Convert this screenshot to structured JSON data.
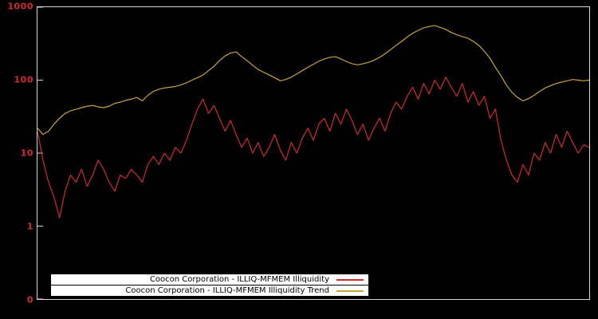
{
  "page": {
    "background_color": "#000000",
    "axis_label_color": "#d22b2b",
    "border_color": "#d8d8d8"
  },
  "legend": {
    "series": [
      {
        "label": "Coocon Corporation - ILLIQ-MFMEM Illiquidity",
        "color": "#d22b2b"
      },
      {
        "label": "Coocon Corporation - ILLIQ-MFMEM Illiquidity Trend",
        "color": "#c9a43a"
      }
    ]
  },
  "chart_data": {
    "type": "line",
    "title": "",
    "xlabel": "",
    "ylabel": "",
    "y_scale": "log",
    "y_domain_log": [
      -1,
      3
    ],
    "y_ticks": [
      "1000",
      "100",
      "10",
      "1",
      "0"
    ],
    "grid": false,
    "legend_position": "bottom-center",
    "x_range": [
      0,
      100
    ],
    "series": [
      {
        "name": "Coocon Corporation - ILLIQ-MFMEM Illiquidity",
        "color": "#d22b2b",
        "values": [
          20,
          8,
          4,
          2.5,
          1.3,
          3,
          5,
          4,
          6,
          3.5,
          5,
          8,
          6,
          4,
          3,
          5,
          4.5,
          6,
          5,
          4,
          7,
          9,
          7,
          10,
          8,
          12,
          10,
          15,
          25,
          40,
          55,
          35,
          45,
          30,
          20,
          28,
          18,
          12,
          16,
          10,
          14,
          9,
          12,
          18,
          11,
          8,
          14,
          10,
          16,
          22,
          15,
          25,
          30,
          20,
          35,
          25,
          40,
          28,
          18,
          25,
          15,
          22,
          30,
          20,
          35,
          50,
          40,
          60,
          80,
          55,
          90,
          65,
          100,
          75,
          110,
          80,
          60,
          90,
          50,
          70,
          45,
          60,
          30,
          40,
          15,
          8,
          5,
          4,
          7,
          5,
          10,
          8,
          14,
          10,
          18,
          12,
          20,
          14,
          10,
          13,
          12
        ]
      },
      {
        "name": "Coocon Corporation - ILLIQ-MFMEM Illiquidity Trend",
        "color": "#c9a43a",
        "values": [
          22,
          18,
          20,
          25,
          30,
          35,
          38,
          40,
          42,
          44,
          45,
          43,
          42,
          44,
          48,
          50,
          53,
          55,
          58,
          52,
          62,
          70,
          75,
          78,
          80,
          82,
          86,
          92,
          100,
          108,
          118,
          135,
          155,
          185,
          215,
          235,
          245,
          210,
          185,
          160,
          140,
          128,
          118,
          108,
          98,
          102,
          110,
          122,
          135,
          150,
          165,
          182,
          195,
          205,
          210,
          195,
          180,
          168,
          162,
          168,
          175,
          188,
          205,
          230,
          262,
          300,
          340,
          390,
          440,
          480,
          520,
          545,
          560,
          530,
          495,
          450,
          420,
          395,
          375,
          340,
          300,
          250,
          200,
          150,
          115,
          85,
          68,
          58,
          52,
          56,
          62,
          70,
          78,
          84,
          90,
          94,
          98,
          102,
          100,
          98,
          100
        ]
      }
    ]
  }
}
